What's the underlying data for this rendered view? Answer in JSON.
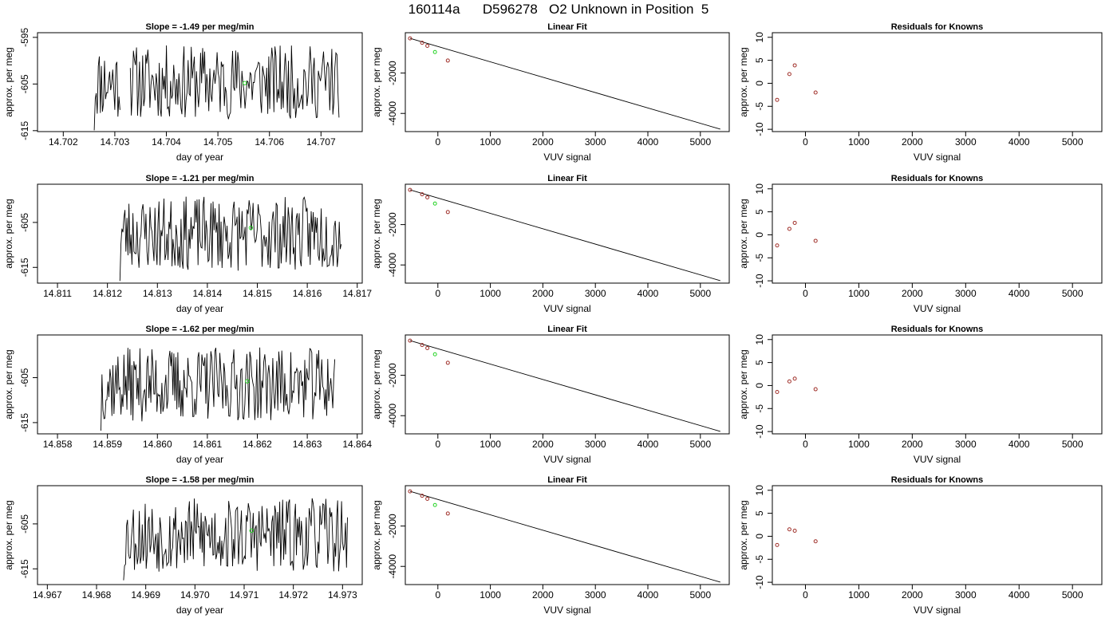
{
  "figure": {
    "title": "160114a      D596278   O2 Unknown in Position  5"
  },
  "rows": [
    {
      "timeseries": {
        "title": "Slope =  -1.49  per meg/min",
        "xlabel": "day of year",
        "ylabel": "approx. per meg",
        "xlim": [
          14.7015,
          14.7078
        ],
        "ylim": [
          -615.2,
          -594.0
        ],
        "xticks": [
          14.702,
          14.703,
          14.704,
          14.705,
          14.706,
          14.707
        ],
        "xtick_labels": [
          "14.702",
          "14.703",
          "14.704",
          "14.705",
          "14.706",
          "14.707"
        ],
        "yticks": [
          -595,
          -605,
          -615
        ],
        "ytick_labels": [
          "-595",
          "-605",
          "-615"
        ],
        "segments": [
          [
            14.7026,
            14.7031
          ],
          [
            14.7033,
            14.70735
          ]
        ],
        "green_point": [
          14.70552,
          -604.8
        ],
        "seed": 11
      },
      "linearfit": {
        "title": "Linear Fit",
        "xlabel": "VUV signal",
        "ylabel": "approx. per meg",
        "known_points": [
          [
            -530,
            -280
          ],
          [
            -300,
            -500
          ],
          [
            -200,
            -650
          ],
          [
            190,
            -1380
          ]
        ],
        "unknown_point": [
          -55,
          -960
        ]
      },
      "residuals": {
        "title": "Residuals for Knowns",
        "xlabel": "VUV signal",
        "ylabel": "approx. per meg",
        "points": [
          [
            -530,
            -3.6
          ],
          [
            -300,
            2.0
          ],
          [
            -200,
            3.9
          ],
          [
            190,
            -2.0
          ]
        ]
      }
    },
    {
      "timeseries": {
        "title": "Slope =  -1.21  per meg/min",
        "xlabel": "day of year",
        "ylabel": "approx. per meg",
        "xlim": [
          14.8106,
          14.8171
        ],
        "ylim": [
          -618.5,
          -596.5
        ],
        "xticks": [
          14.811,
          14.812,
          14.813,
          14.814,
          14.815,
          14.816,
          14.817
        ],
        "xtick_labels": [
          "14.811",
          "14.812",
          "14.813",
          "14.814",
          "14.815",
          "14.816",
          "14.817"
        ],
        "yticks": [
          -605,
          -615
        ],
        "ytick_labels": [
          "-605",
          "-615"
        ],
        "segments": [
          [
            14.81225,
            14.81668
          ]
        ],
        "green_point": [
          14.81487,
          -606.2
        ],
        "seed": 23
      },
      "linearfit": {
        "title": "Linear Fit",
        "xlabel": "VUV signal",
        "ylabel": "approx. per meg",
        "known_points": [
          [
            -530,
            -280
          ],
          [
            -300,
            -500
          ],
          [
            -200,
            -650
          ],
          [
            190,
            -1380
          ]
        ],
        "unknown_point": [
          -55,
          -960
        ]
      },
      "residuals": {
        "title": "Residuals for Knowns",
        "xlabel": "VUV signal",
        "ylabel": "approx. per meg",
        "points": [
          [
            -530,
            -2.3
          ],
          [
            -300,
            1.3
          ],
          [
            -200,
            2.6
          ],
          [
            190,
            -1.3
          ]
        ]
      }
    },
    {
      "timeseries": {
        "title": "Slope =  -1.62  per meg/min",
        "xlabel": "day of year",
        "ylabel": "approx. per meg",
        "xlim": [
          14.8576,
          14.8641
        ],
        "ylim": [
          -617.5,
          -595.5
        ],
        "xticks": [
          14.858,
          14.859,
          14.86,
          14.861,
          14.862,
          14.863,
          14.864
        ],
        "xtick_labels": [
          "14.858",
          "14.859",
          "14.860",
          "14.861",
          "14.862",
          "14.863",
          "14.864"
        ],
        "yticks": [
          -605,
          -615
        ],
        "ytick_labels": [
          "-605",
          "-615"
        ],
        "segments": [
          [
            14.85887,
            14.86355
          ]
        ],
        "green_point": [
          14.8618,
          -605.8
        ],
        "seed": 37
      },
      "linearfit": {
        "title": "Linear Fit",
        "xlabel": "VUV signal",
        "ylabel": "approx. per meg",
        "known_points": [
          [
            -530,
            -280
          ],
          [
            -300,
            -500
          ],
          [
            -200,
            -650
          ],
          [
            190,
            -1380
          ]
        ],
        "unknown_point": [
          -55,
          -960
        ]
      },
      "residuals": {
        "title": "Residuals for Knowns",
        "xlabel": "VUV signal",
        "ylabel": "approx. per meg",
        "points": [
          [
            -530,
            -1.4
          ],
          [
            -300,
            0.9
          ],
          [
            -200,
            1.5
          ],
          [
            190,
            -0.8
          ]
        ]
      }
    },
    {
      "timeseries": {
        "title": "Slope =  -1.58  per meg/min",
        "xlabel": "day of year",
        "ylabel": "approx. per meg",
        "xlim": [
          14.9668,
          14.9734
        ],
        "ylim": [
          -618.5,
          -596.5
        ],
        "xticks": [
          14.967,
          14.968,
          14.969,
          14.97,
          14.971,
          14.972,
          14.973
        ],
        "xtick_labels": [
          "14.967",
          "14.968",
          "14.969",
          "14.970",
          "14.971",
          "14.972",
          "14.973"
        ],
        "yticks": [
          -605,
          -615
        ],
        "ytick_labels": [
          "-605",
          "-615"
        ],
        "segments": [
          [
            14.96855,
            14.9731
          ]
        ],
        "green_point": [
          14.97115,
          -606.5
        ],
        "seed": 53
      },
      "linearfit": {
        "title": "Linear Fit",
        "xlabel": "VUV signal",
        "ylabel": "approx. per meg",
        "known_points": [
          [
            -530,
            -280
          ],
          [
            -300,
            -500
          ],
          [
            -200,
            -650
          ],
          [
            190,
            -1380
          ]
        ],
        "unknown_point": [
          -55,
          -960
        ]
      },
      "residuals": {
        "title": "Residuals for Knowns",
        "xlabel": "VUV signal",
        "ylabel": "approx. per meg",
        "points": [
          [
            -530,
            -1.9
          ],
          [
            -300,
            1.5
          ],
          [
            -200,
            1.2
          ],
          [
            190,
            -1.1
          ]
        ]
      }
    }
  ],
  "chart_data": [
    {
      "type": "line",
      "panel": "timeseries",
      "xlabel": "day of year",
      "ylabel": "approx. per meg"
    },
    {
      "type": "scatter",
      "panel": "linearfit",
      "title": "Linear Fit",
      "xlabel": "VUV signal",
      "ylabel": "approx. per meg",
      "xlim": [
        -620,
        5550
      ],
      "ylim": [
        -4900,
        0
      ],
      "xticks": [
        0,
        1000,
        2000,
        3000,
        4000,
        5000
      ],
      "xtick_labels": [
        "0",
        "1000",
        "2000",
        "3000",
        "4000",
        "5000"
      ],
      "yticks": [
        -2000,
        -4000
      ],
      "ytick_labels": [
        "-2000",
        "-4000"
      ],
      "fit_line": [
        [
          -530,
          -280
        ],
        [
          5380,
          -4780
        ]
      ],
      "known_color": "#a0302a",
      "unknown_color": "#22d322"
    },
    {
      "type": "scatter",
      "panel": "residuals",
      "title": "Residuals for Knowns",
      "xlabel": "VUV signal",
      "ylabel": "approx. per meg",
      "xlim": [
        -620,
        5550
      ],
      "ylim": [
        -10.5,
        11
      ],
      "xticks": [
        0,
        1000,
        2000,
        3000,
        4000,
        5000
      ],
      "xtick_labels": [
        "0",
        "1000",
        "2000",
        "3000",
        "4000",
        "5000"
      ],
      "yticks": [
        10,
        5,
        0,
        -5,
        -10
      ],
      "ytick_labels": [
        "10",
        "5",
        "0",
        "-5",
        "-10"
      ],
      "point_color": "#a0302a"
    }
  ]
}
